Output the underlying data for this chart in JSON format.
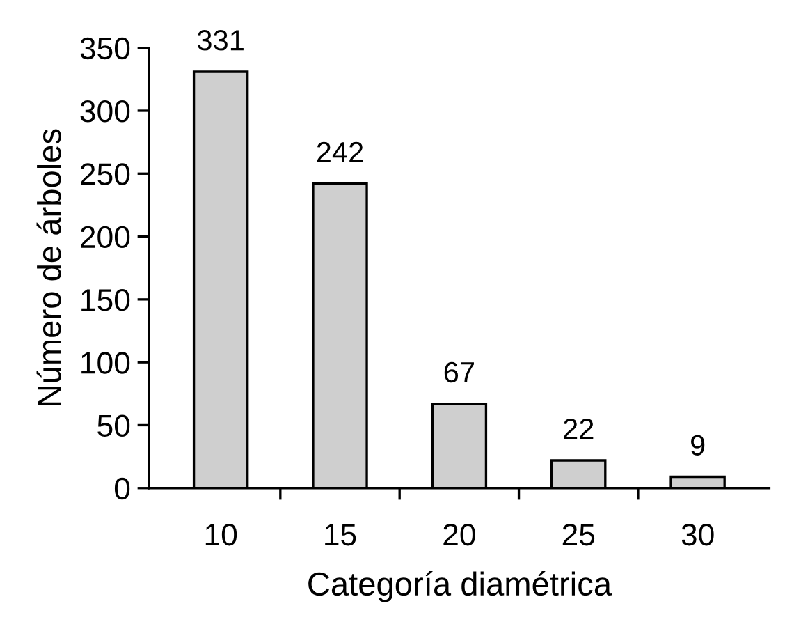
{
  "chart_data": {
    "type": "bar",
    "xlabel": "Categoría diamétrica",
    "ylabel": "Número de árboles",
    "categories": [
      "10",
      "15",
      "20",
      "25",
      "30"
    ],
    "values": [
      331,
      242,
      67,
      22,
      9
    ],
    "color": "#cfcfcf",
    "ylim": [
      0,
      350
    ],
    "yticks": [
      0,
      50,
      100,
      150,
      200,
      250,
      300,
      350
    ],
    "data_labels": true,
    "grid": false,
    "legend": false
  }
}
